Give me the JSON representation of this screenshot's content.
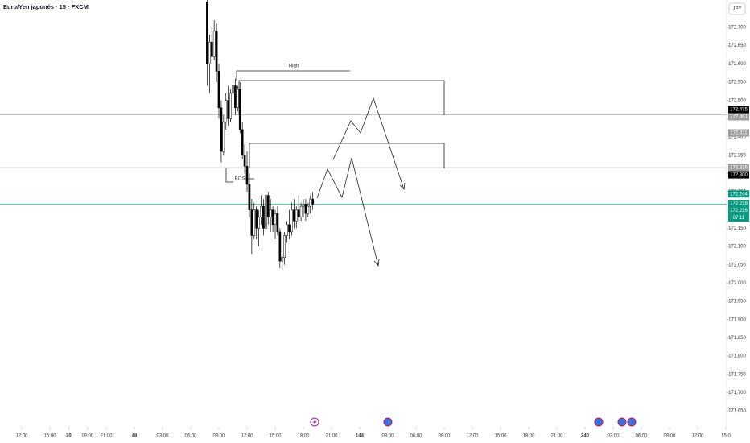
{
  "chart_data": {
    "type": "candlestick",
    "title": "Euro/Yen japonés · 15 · FXCM",
    "currency": "JPY",
    "up_color": "#ffffff",
    "down_color": "#000000",
    "border_color": "#000000",
    "x": [
      79,
      80,
      81,
      82,
      83,
      84,
      85,
      86,
      87,
      88,
      89,
      90,
      91,
      92,
      93,
      94,
      95,
      96,
      97,
      98,
      99,
      100,
      101,
      102,
      103,
      104,
      105,
      106,
      107,
      108,
      109,
      110,
      111,
      112,
      113,
      114,
      115,
      116,
      117,
      118,
      119,
      120,
      121,
      122,
      123,
      124
    ],
    "open": [
      172770,
      172600,
      172660,
      172620,
      172690,
      172580,
      172480,
      172360,
      172440,
      172500,
      172450,
      172520,
      172540,
      172480,
      172530,
      172420,
      172350,
      172320,
      172270,
      172200,
      172130,
      172200,
      172150,
      172180,
      172210,
      172150,
      172240,
      172180,
      172200,
      172160,
      172190,
      172140,
      172060,
      172070,
      172130,
      172160,
      172140,
      172200,
      172170,
      172200,
      172180,
      172210,
      172216,
      172190,
      172210,
      172230
    ],
    "high": [
      172775,
      172680,
      172700,
      172720,
      172710,
      172600,
      172500,
      172460,
      172520,
      172540,
      172530,
      172575,
      172560,
      172540,
      172550,
      172440,
      172380,
      172360,
      172300,
      172230,
      172220,
      172210,
      172200,
      172240,
      172230,
      172260,
      172250,
      172230,
      172210,
      172200,
      172210,
      172150,
      172080,
      172140,
      172170,
      172200,
      172220,
      172230,
      172210,
      172240,
      172220,
      172230,
      172230,
      172220,
      172240,
      172250
    ],
    "low": [
      172540,
      172520,
      172600,
      172610,
      172550,
      172450,
      172330,
      172350,
      172420,
      172430,
      172440,
      172480,
      172460,
      172470,
      172410,
      172340,
      172300,
      172250,
      172180,
      172080,
      172120,
      172120,
      172100,
      172160,
      172130,
      172140,
      172160,
      172140,
      172140,
      172120,
      172130,
      172040,
      172035,
      172050,
      172110,
      172120,
      172130,
      172150,
      172150,
      172170,
      172170,
      172180,
      172170,
      172180,
      172190,
      172200
    ],
    "close": [
      172600,
      172660,
      172620,
      172690,
      172580,
      172480,
      172360,
      172440,
      172500,
      172450,
      172520,
      172540,
      172480,
      172530,
      172420,
      172350,
      172320,
      172270,
      172200,
      172130,
      172200,
      172150,
      172180,
      172210,
      172150,
      172240,
      172180,
      172200,
      172160,
      172190,
      172140,
      172060,
      172070,
      172130,
      172160,
      172140,
      172200,
      172170,
      172200,
      172180,
      172210,
      172216,
      172190,
      172210,
      172230,
      172216
    ],
    "xlim": [
      -9.26,
      300.34
    ],
    "xticks": [
      {
        "value": 0,
        "label": "12:00"
      },
      {
        "value": 12,
        "label": "15:00"
      },
      20,
      {
        "value": 28,
        "label": "19:00"
      },
      {
        "value": 36,
        "label": "21:00"
      },
      48,
      {
        "value": 60,
        "label": "03:00"
      },
      {
        "value": 72,
        "label": "06:00"
      },
      {
        "value": 84,
        "label": "09:00"
      },
      {
        "value": 96,
        "label": "12:00"
      },
      {
        "value": 108,
        "label": "15:00"
      },
      {
        "value": 120,
        "label": "18:00"
      },
      {
        "value": 132,
        "label": "21:00"
      },
      144,
      {
        "value": 156,
        "label": "03:00"
      },
      {
        "value": 168,
        "label": "06:00"
      },
      {
        "value": 180,
        "label": "09:00"
      },
      {
        "value": 192,
        "label": "12:00"
      },
      {
        "value": 204,
        "label": "15:00"
      },
      {
        "value": 216,
        "label": "18:00"
      },
      {
        "value": 228,
        "label": "21:00"
      },
      240,
      {
        "value": 252,
        "label": "03:00"
      },
      {
        "value": 264,
        "label": "06:00"
      },
      {
        "value": 276,
        "label": "09:00"
      },
      {
        "value": 288,
        "label": "12:00"
      },
      {
        "value": 300,
        "label": "15:0"
      }
    ],
    "ylim": [
      171628,
      172775
    ],
    "yticks": [
      {
        "value": 172700,
        "label": "172,700"
      },
      {
        "value": 172650,
        "label": "172,650"
      },
      {
        "value": 172600,
        "label": "172,600"
      },
      {
        "value": 172550,
        "label": "172,550"
      },
      {
        "value": 172500,
        "label": "172,500"
      },
      {
        "value": 172450,
        "label": "172,450"
      },
      {
        "value": 172400,
        "label": "172,400"
      },
      {
        "value": 172350,
        "label": "172,350"
      },
      {
        "value": 172300,
        "label": "172,300"
      },
      {
        "value": 172250,
        "label": "172,250"
      },
      {
        "value": 172200,
        "label": "172,200"
      },
      {
        "value": 172150,
        "label": "172,150"
      },
      {
        "value": 172100,
        "label": "172,100"
      },
      {
        "value": 172050,
        "label": "172,050"
      },
      {
        "value": 172000,
        "label": "172,000"
      },
      {
        "value": 171950,
        "label": "171,950"
      },
      {
        "value": 171900,
        "label": "171,900"
      },
      {
        "value": 171850,
        "label": "171,850"
      },
      {
        "value": 171800,
        "label": "171,800"
      },
      {
        "value": 171750,
        "label": "171,750"
      },
      {
        "value": 171700,
        "label": "171,700"
      },
      {
        "value": 171650,
        "label": "171,650"
      }
    ],
    "levels": [
      {
        "value": 172461,
        "color": "#b0b0b0"
      },
      {
        "value": 172316,
        "color": "#b0b0b0"
      },
      {
        "value": 172216,
        "color": "#3cc0a8"
      }
    ],
    "price_labels": [
      {
        "value": 172475,
        "label": "172,475",
        "color": "#000000"
      },
      {
        "value": 172461,
        "label": "172,461",
        "color": "#9e9e9e"
      },
      {
        "value": 172411,
        "label": "172,411",
        "color": "#9e9e9e"
      },
      {
        "value": 172316,
        "label": "172,316",
        "color": "#9e9e9e"
      },
      {
        "value": 172300,
        "label": "172,300",
        "color": "#000000"
      },
      {
        "value": 172244,
        "label": "172,244",
        "color": "#089981"
      },
      {
        "value": 172218,
        "label": "172,218",
        "color": "#089981"
      },
      {
        "value": 172216,
        "label": "172,216",
        "color": "#089981"
      }
    ],
    "countdown": "07:11",
    "annotations": [
      "High",
      "BOS"
    ]
  }
}
